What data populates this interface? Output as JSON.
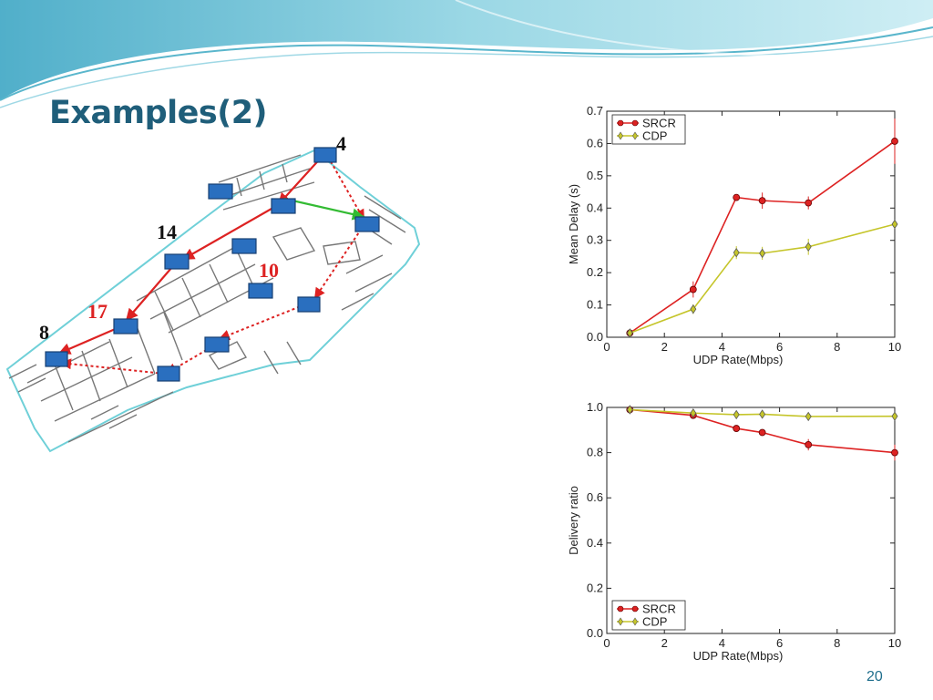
{
  "slide": {
    "title": "Examples(2)",
    "page_number": "20",
    "colors": {
      "title": "#1f5e7a",
      "wave": "#5ab6cc",
      "srcr": "#dd2222",
      "cdp": "#c5c52a",
      "node": "#2a6fbf"
    }
  },
  "floorplan": {
    "node_labels": [
      {
        "id": "n4",
        "text": "4",
        "color": "#111111"
      },
      {
        "id": "n14",
        "text": "14",
        "color": "#111111"
      },
      {
        "id": "n10",
        "text": "10",
        "color": "#dd2222"
      },
      {
        "id": "n17",
        "text": "17",
        "color": "#dd2222"
      },
      {
        "id": "n8",
        "text": "8",
        "color": "#111111"
      }
    ]
  },
  "chart_data": [
    {
      "type": "line",
      "xlabel": "UDP Rate(Mbps)",
      "ylabel": "Mean Delay (s)",
      "xlim": [
        0,
        10
      ],
      "ylim": [
        0,
        0.7
      ],
      "xticks": [
        "0",
        "2",
        "4",
        "6",
        "8",
        "10"
      ],
      "yticks": [
        "0.0",
        "0.1",
        "0.2",
        "0.3",
        "0.4",
        "0.5",
        "0.6",
        "0.7"
      ],
      "legend_position": "top-left",
      "series": [
        {
          "name": "SRCR",
          "color": "#dd2222",
          "marker": "circle",
          "x": [
            0.8,
            3.0,
            4.5,
            5.4,
            7.0,
            10.0
          ],
          "y": [
            0.013,
            0.148,
            0.433,
            0.423,
            0.416,
            0.607
          ],
          "err": [
            0.005,
            0.025,
            0.005,
            0.025,
            0.02,
            0.07
          ]
        },
        {
          "name": "CDP",
          "color": "#c5c52a",
          "marker": "diamond",
          "x": [
            0.8,
            3.0,
            4.5,
            5.4,
            7.0,
            10.0
          ],
          "y": [
            0.013,
            0.087,
            0.262,
            0.26,
            0.28,
            0.35
          ],
          "err": [
            0.004,
            0.015,
            0.02,
            0.02,
            0.025,
            0.01
          ]
        }
      ]
    },
    {
      "type": "line",
      "xlabel": "UDP Rate(Mbps)",
      "ylabel": "Delivery ratio",
      "xlim": [
        0,
        10
      ],
      "ylim": [
        0,
        1.0
      ],
      "xticks": [
        "0",
        "2",
        "4",
        "6",
        "8",
        "10"
      ],
      "yticks": [
        "0.0",
        "0.2",
        "0.4",
        "0.6",
        "0.8",
        "1.0"
      ],
      "legend_position": "bottom-left",
      "series": [
        {
          "name": "SRCR",
          "color": "#dd2222",
          "marker": "circle",
          "x": [
            0.8,
            3.0,
            4.5,
            5.4,
            7.0,
            10.0
          ],
          "y": [
            0.99,
            0.965,
            0.907,
            0.889,
            0.835,
            0.8
          ],
          "err": [
            0.005,
            0.01,
            0.005,
            0.005,
            0.025,
            0.035
          ]
        },
        {
          "name": "CDP",
          "color": "#c5c52a",
          "marker": "diamond",
          "x": [
            0.8,
            3.0,
            4.5,
            5.4,
            7.0,
            10.0
          ],
          "y": [
            0.99,
            0.975,
            0.968,
            0.97,
            0.96,
            0.961
          ],
          "err": [
            0.005,
            0.015,
            0.005,
            0.005,
            0.01,
            0.01
          ]
        }
      ]
    }
  ]
}
